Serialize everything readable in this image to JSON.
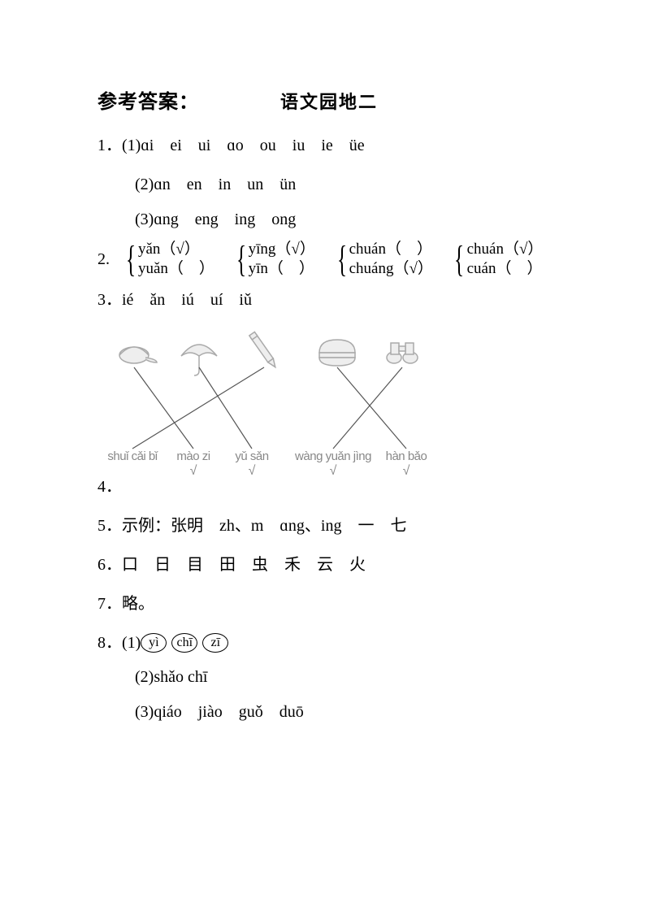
{
  "header": {
    "left": "参考答案：",
    "center": "语文园地二"
  },
  "q1": {
    "num": "1．",
    "a": "(1)ɑi　ei　ui　ɑo　ou　iu　ie　üe",
    "b": "(2)ɑn　en　in　un　ün",
    "c": "(3)ɑng　eng　ing　ong"
  },
  "q2": {
    "num": "2.",
    "pairs": [
      {
        "top": "yǎn（√）",
        "bot": "yuǎn（　）"
      },
      {
        "top": "yīng（√）",
        "bot": "yīn（　）"
      },
      {
        "top": "chuán（　）",
        "bot": "chuáng（√）"
      },
      {
        "top": "chuán（√）",
        "bot": "cuán（　）"
      }
    ]
  },
  "q3": {
    "num": "3．",
    "text": "ié　ǎn　iú　uí　iǔ"
  },
  "q4": {
    "num": "4．",
    "labels": [
      "shuǐ cǎi bǐ",
      "mào zi",
      "yǔ sǎn",
      "wàng yuǎn jìng",
      "hàn bǎo"
    ],
    "items": [
      "cap",
      "umbrella",
      "pen",
      "burger",
      "binoculars"
    ],
    "lines": [
      {
        "from": 0,
        "to": 1
      },
      {
        "from": 1,
        "to": 2
      },
      {
        "from": 2,
        "to": 0
      },
      {
        "from": 3,
        "to": 4
      },
      {
        "from": 4,
        "to": 3
      }
    ],
    "checks": [
      1,
      2,
      3,
      4
    ]
  },
  "q5": {
    "num": "5．",
    "text": "示例：张明　zh、m　ɑng、ing　一　七"
  },
  "q6": {
    "num": "6．",
    "text": "口　日　目　田　虫　禾　云　火"
  },
  "q7": {
    "num": "7．",
    "text": "略。"
  },
  "q8": {
    "num": "8．",
    "a_prefix": "(1) ",
    "a_circles": [
      "yì",
      "chī",
      "zī"
    ],
    "b": "(2)shǎo chī",
    "c": "(3)qiáo　jiào　guǒ　duō"
  }
}
